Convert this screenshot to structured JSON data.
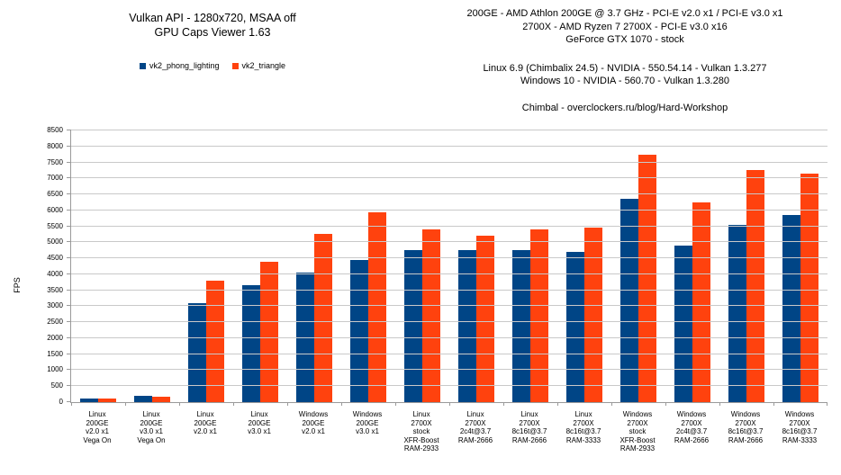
{
  "header": {
    "title_lines": [
      "Vulkan API - 1280x720, MSAA off",
      "GPU Caps Viewer 1.63"
    ]
  },
  "sysinfo": {
    "hardware_lines": [
      "200GE - AMD Athlon 200GE @ 3.7 GHz - PCI-E v2.0 x1 / PCI-E v3.0 x1",
      "2700X - AMD Ryzen 7 2700X - PCI-E v3.0 x16",
      "GeForce GTX 1070 - stock"
    ],
    "driver_lines": [
      "Linux 6.9 (Chimbalix 24.5) - NVIDIA - 550.54.14 - Vulkan 1.3.277",
      "Windows 10 - NVIDIA - 560.70 - Vulkan 1.3.280"
    ],
    "credit": "Chimbal - overclockers.ru/blog/Hard-Workshop"
  },
  "chart_data": {
    "type": "bar",
    "title": "Vulkan API - 1280x720, MSAA off / GPU Caps Viewer 1.63",
    "ylabel": "FPS",
    "xlabel": "",
    "ylim": [
      0,
      8500
    ],
    "ytick_step": 500,
    "grid": true,
    "legend_position": "top-left",
    "categories": [
      [
        "Linux",
        "200GE",
        "v2.0 x1",
        "Vega On"
      ],
      [
        "Linux",
        "200GE",
        "v3.0 x1",
        "Vega On"
      ],
      [
        "Linux",
        "200GE",
        "v2.0 x1"
      ],
      [
        "Linux",
        "200GE",
        "v3.0 x1"
      ],
      [
        "Windows",
        "200GE",
        "v2.0 x1"
      ],
      [
        "Windows",
        "200GE",
        "v3.0 x1"
      ],
      [
        "Linux",
        "2700X",
        "stock",
        "XFR-Boost",
        "RAM-2933"
      ],
      [
        "Linux",
        "2700X",
        "2c4t@3.7",
        "RAM-2666"
      ],
      [
        "Linux",
        "2700X",
        "8c16t@3.7",
        "RAM-2666"
      ],
      [
        "Linux",
        "2700X",
        "8c16t@3.7",
        "RAM-3333"
      ],
      [
        "Windows",
        "2700X",
        "stock",
        "XFR-Boost",
        "RAM-2933"
      ],
      [
        "Windows",
        "2700X",
        "2c4t@3.7",
        "RAM-2666"
      ],
      [
        "Windows",
        "2700X",
        "8c16t@3.7",
        "RAM-2666"
      ],
      [
        "Windows",
        "2700X",
        "8c16t@3.7",
        "RAM-3333"
      ]
    ],
    "series": [
      {
        "name": "vk2_phong_lighting",
        "color": "#004586",
        "values": [
          110,
          190,
          3100,
          3650,
          4050,
          4450,
          4750,
          4750,
          4750,
          4700,
          6350,
          4900,
          5550,
          5850
        ]
      },
      {
        "name": "vk2_triangle",
        "color": "#FF420E",
        "values": [
          100,
          170,
          3800,
          4400,
          5250,
          5950,
          5400,
          5200,
          5400,
          5450,
          7750,
          6250,
          7250,
          7150
        ]
      }
    ],
    "colors": {
      "gridline": "#c9c9c9",
      "axis": "#9a9a9a",
      "text": "#000000"
    }
  }
}
